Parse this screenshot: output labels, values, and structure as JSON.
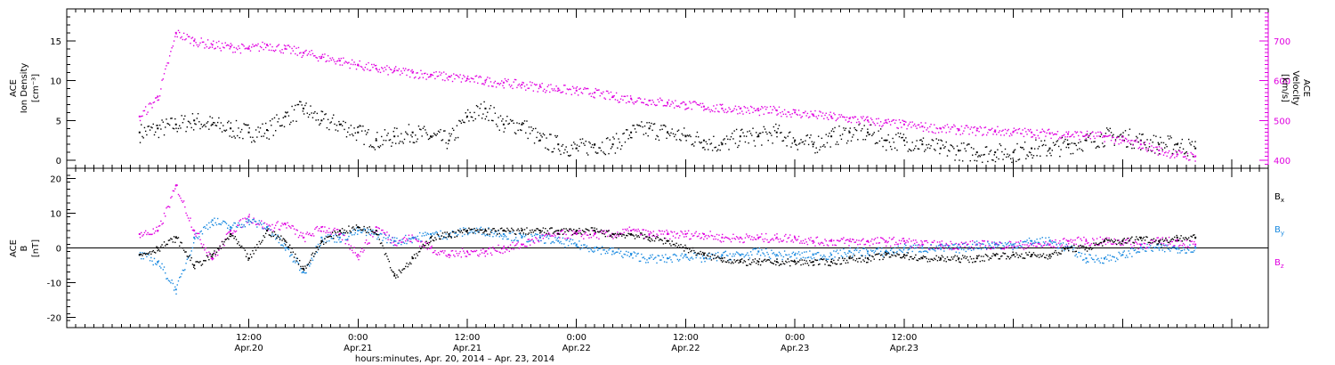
{
  "chart_data": [
    {
      "type": "scatter",
      "panel": "top",
      "left_axis": {
        "label_lines": [
          "ACE",
          "Ion Density",
          "[cm⁻³]"
        ],
        "ylim": [
          -1,
          19
        ],
        "ticks": [
          0,
          5,
          10,
          15
        ],
        "tick_labels": [
          "0",
          "5",
          "10",
          "15"
        ]
      },
      "right_axis": {
        "label_lines": [
          "ACE",
          "Velocity",
          "[km/s]"
        ],
        "ylim": [
          380,
          780
        ],
        "ticks": [
          400,
          500,
          600,
          700
        ],
        "tick_labels": [
          "400",
          "500",
          "600",
          "700"
        ],
        "color": "#e000e0"
      },
      "series": [
        {
          "axis": "left",
          "color": "#000000",
          "x": [
            0,
            2,
            4,
            6,
            8,
            10,
            12,
            14,
            16,
            18,
            20,
            22,
            24,
            26,
            28,
            30,
            32,
            34,
            36,
            38,
            40,
            42,
            44,
            46,
            48,
            50,
            52,
            54,
            56,
            58,
            60,
            62,
            64,
            66,
            68,
            70,
            72,
            74,
            76,
            78,
            80,
            82,
            84,
            86,
            88,
            90,
            92,
            94,
            96,
            98,
            100,
            102,
            104,
            106,
            108,
            110,
            112,
            114,
            116
          ],
          "values": [
            3.5,
            4.0,
            4.5,
            5.0,
            4.5,
            4.0,
            3.5,
            3.8,
            5.5,
            6.5,
            5.0,
            4.5,
            3.5,
            2.5,
            3.0,
            3.5,
            3.0,
            2.5,
            5.5,
            6.5,
            4.5,
            4.5,
            2.5,
            2.0,
            1.5,
            2.0,
            2.0,
            3.5,
            4.0,
            3.5,
            3.0,
            2.5,
            2.0,
            3.0,
            3.0,
            3.5,
            2.5,
            2.0,
            3.0,
            3.5,
            3.5,
            2.5,
            2.5,
            2.0,
            1.5,
            1.2,
            1.0,
            1.0,
            1.0,
            1.5,
            1.5,
            2.0,
            2.5,
            3.0,
            3.0,
            2.5,
            2.0,
            2.0,
            1.5
          ]
        },
        {
          "axis": "right",
          "color": "#e000e0",
          "x": [
            0,
            2,
            4,
            6,
            8,
            10,
            12,
            14,
            16,
            18,
            20,
            22,
            24,
            26,
            28,
            30,
            32,
            34,
            36,
            38,
            40,
            42,
            44,
            46,
            48,
            50,
            52,
            54,
            56,
            58,
            60,
            62,
            64,
            66,
            68,
            70,
            72,
            74,
            76,
            78,
            80,
            82,
            84,
            86,
            88,
            90,
            92,
            94,
            96,
            98,
            100,
            102,
            104,
            106,
            108,
            110,
            112,
            114,
            116
          ],
          "values": [
            510,
            560,
            720,
            700,
            690,
            685,
            680,
            690,
            680,
            670,
            660,
            650,
            640,
            630,
            625,
            620,
            615,
            610,
            605,
            600,
            595,
            590,
            585,
            580,
            575,
            570,
            560,
            555,
            550,
            545,
            540,
            535,
            530,
            530,
            525,
            525,
            520,
            515,
            510,
            505,
            500,
            495,
            490,
            485,
            480,
            478,
            475,
            475,
            472,
            470,
            468,
            466,
            464,
            460,
            450,
            440,
            425,
            415,
            410
          ]
        }
      ]
    },
    {
      "type": "scatter",
      "panel": "bottom",
      "left_axis": {
        "label_lines": [
          "ACE",
          "B",
          "[nT]"
        ],
        "ylim": [
          -23,
          23
        ],
        "ticks": [
          -20,
          -10,
          0,
          10,
          20
        ],
        "tick_labels": [
          "-20",
          "-10",
          "0",
          "10",
          "20"
        ]
      },
      "legend": [
        {
          "name": "B",
          "sub": "x",
          "color": "#000000"
        },
        {
          "name": "B",
          "sub": "y",
          "color": "#1a8ae0"
        },
        {
          "name": "B",
          "sub": "z",
          "color": "#e000e0"
        }
      ],
      "series": [
        {
          "name": "Bx",
          "color": "#000000",
          "x": [
            0,
            2,
            4,
            6,
            8,
            10,
            12,
            14,
            16,
            18,
            20,
            22,
            24,
            26,
            28,
            30,
            32,
            34,
            36,
            38,
            40,
            42,
            44,
            46,
            48,
            50,
            52,
            54,
            56,
            58,
            60,
            62,
            64,
            66,
            68,
            70,
            72,
            74,
            76,
            78,
            80,
            82,
            84,
            86,
            88,
            90,
            92,
            94,
            96,
            98,
            100,
            102,
            104,
            106,
            108,
            110,
            112,
            114,
            116
          ],
          "values": [
            -2,
            0,
            3,
            -5,
            -2,
            4,
            -3,
            5,
            2,
            -6,
            2,
            5,
            6,
            5,
            -8,
            -3,
            3,
            4,
            5,
            5,
            5,
            5,
            5,
            5,
            5,
            5,
            4,
            4,
            3,
            2,
            0,
            -2,
            -3,
            -4,
            -4,
            -4,
            -4,
            -4,
            -4,
            -3,
            -3,
            -2,
            -2,
            -3,
            -3,
            -3,
            -3,
            -2,
            -2,
            -2,
            -2,
            0,
            0,
            2,
            2,
            3,
            2,
            3,
            3
          ]
        },
        {
          "name": "By",
          "color": "#1a8ae0",
          "x": [
            0,
            2,
            4,
            6,
            8,
            10,
            12,
            14,
            16,
            18,
            20,
            22,
            24,
            26,
            28,
            30,
            32,
            34,
            36,
            38,
            40,
            42,
            44,
            46,
            48,
            50,
            52,
            54,
            56,
            58,
            60,
            62,
            64,
            66,
            68,
            70,
            72,
            74,
            76,
            78,
            80,
            82,
            84,
            86,
            88,
            90,
            92,
            94,
            96,
            98,
            100,
            102,
            104,
            106,
            108,
            110,
            112,
            114,
            116
          ],
          "values": [
            -2,
            -4,
            -12,
            3,
            8,
            6,
            8,
            6,
            0,
            -7,
            3,
            3,
            5,
            4,
            2,
            3,
            4,
            4,
            5,
            5,
            4,
            3,
            3,
            2,
            1,
            0,
            -1,
            -2,
            -3,
            -3,
            -2,
            -3,
            -2,
            -2,
            -1,
            -2,
            -2,
            -2,
            -2,
            -1,
            -1,
            -1,
            0,
            0,
            0,
            0,
            1,
            1,
            1,
            2,
            2,
            0,
            -3,
            -3,
            -2,
            0,
            0,
            0,
            0
          ]
        },
        {
          "name": "Bz",
          "color": "#e000e0",
          "x": [
            0,
            2,
            4,
            6,
            8,
            10,
            12,
            14,
            16,
            18,
            20,
            22,
            24,
            26,
            28,
            30,
            32,
            34,
            36,
            38,
            40,
            42,
            44,
            46,
            48,
            50,
            52,
            54,
            56,
            58,
            60,
            62,
            64,
            66,
            68,
            70,
            72,
            74,
            76,
            78,
            80,
            82,
            84,
            86,
            88,
            90,
            92,
            94,
            96,
            98,
            100,
            102,
            104,
            106,
            108,
            110,
            112,
            114,
            116
          ],
          "values": [
            4,
            5,
            18,
            5,
            -3,
            5,
            9,
            6,
            7,
            3,
            6,
            4,
            -2,
            6,
            2,
            3,
            0,
            -2,
            -1,
            -1,
            0,
            1,
            3,
            4,
            4,
            4,
            4,
            5,
            4,
            4,
            4,
            4,
            3,
            3,
            3,
            3,
            3,
            2,
            2,
            2,
            2,
            2,
            2,
            1,
            1,
            1,
            1,
            1,
            1,
            1,
            1,
            2,
            2,
            2,
            2,
            1,
            2,
            2,
            1
          ]
        }
      ]
    }
  ],
  "x_axis": {
    "xlim": [
      -8,
      124
    ],
    "major_ticks": [
      12,
      24,
      36,
      48,
      60,
      72,
      84,
      96,
      108,
      120
    ],
    "tick_labels": [
      {
        "x": 12,
        "time": "12:00",
        "date": "Apr.20"
      },
      {
        "x": 24,
        "time": "0:00",
        "date": "Apr.21"
      },
      {
        "x": 36,
        "time": "12:00",
        "date": "Apr.21"
      },
      {
        "x": 48,
        "time": "0:00",
        "date": "Apr.22"
      },
      {
        "x": 60,
        "time": "12:00",
        "date": "Apr.22"
      },
      {
        "x": 72,
        "time": "0:00",
        "date": "Apr.23"
      },
      {
        "x": 84,
        "time": "12:00",
        "date": "Apr.23"
      }
    ],
    "title": "hours:minutes, Apr. 20, 2014 – Apr. 23, 2014"
  }
}
